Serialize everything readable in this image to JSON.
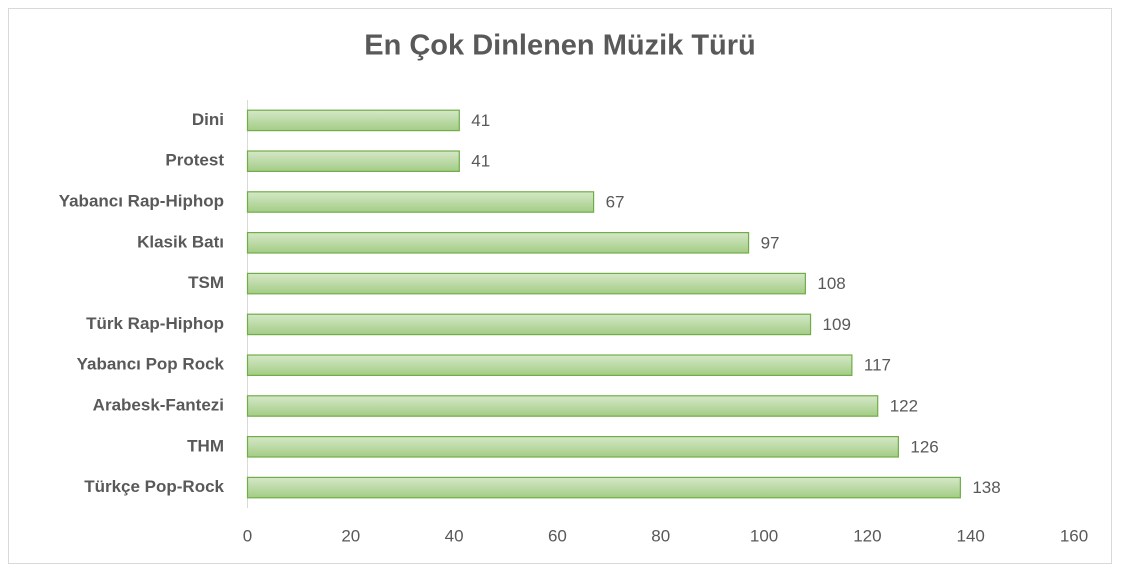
{
  "chart_data": {
    "type": "bar",
    "orientation": "horizontal",
    "title": "En Çok Dinlenen Müzik Türü",
    "categories": [
      "Dini",
      "Protest",
      "Yabancı Rap-Hiphop",
      "Klasik Batı",
      "TSM",
      "Türk Rap-Hiphop",
      "Yabancı Pop Rock",
      "Arabesk-Fantezi",
      "THM",
      "Türkçe Pop-Rock"
    ],
    "values": [
      41,
      41,
      67,
      97,
      108,
      109,
      117,
      122,
      126,
      138
    ],
    "color": "#a9d18e",
    "xlim": [
      0,
      160
    ],
    "xticks": [
      0,
      20,
      40,
      60,
      80,
      100,
      120,
      140,
      160
    ],
    "grid": false
  }
}
